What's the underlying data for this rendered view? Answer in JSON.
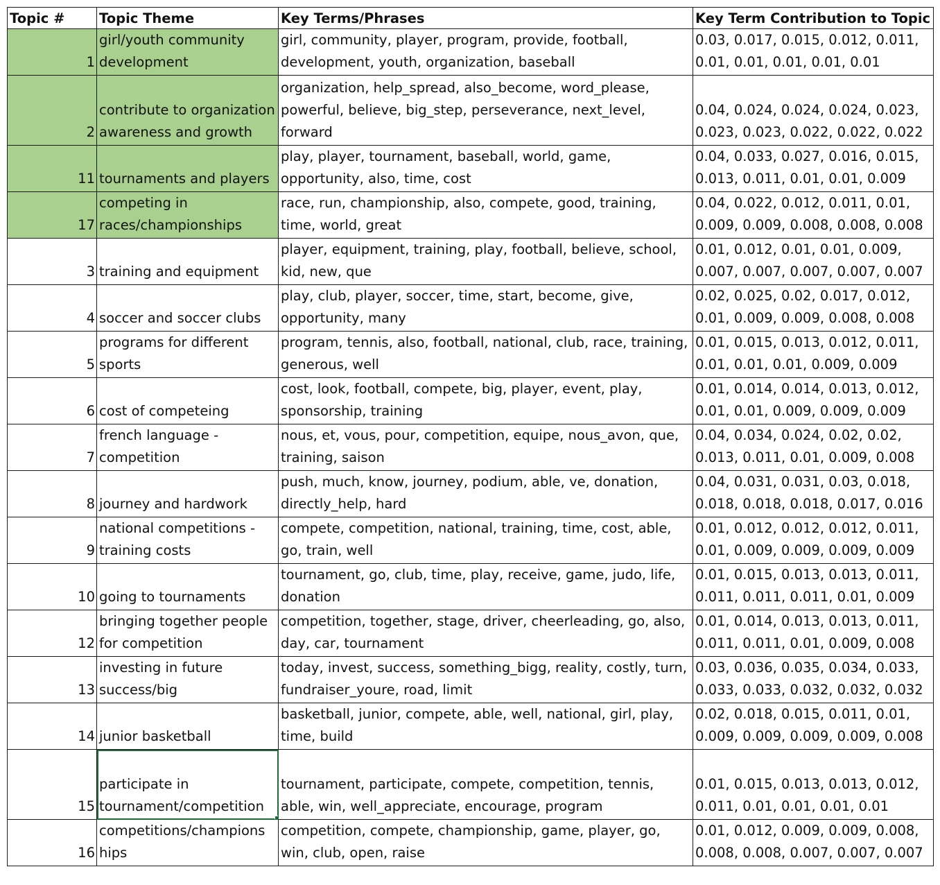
{
  "table": {
    "headers": [
      "Topic #",
      "Topic Theme",
      "Key Terms/Phrases",
      "Key Term Contribution to Topic"
    ],
    "rows": [
      {
        "num": "1",
        "theme": "girl/youth community development",
        "terms": "girl, community, player, program, provide, football, development, youth, organization, baseball",
        "contrib": "0.03, 0.017, 0.015, 0.012, 0.011, 0.01, 0.01, 0.01, 0.01, 0.01"
      },
      {
        "num": "2",
        "theme": "contribute to organization awareness and growth",
        "terms": "organization, help_spread, also_become, word_please, powerful, believe, big_step, perseverance, next_level, forward",
        "contrib": "0.04, 0.024, 0.024, 0.024, 0.023, 0.023, 0.023, 0.022, 0.022, 0.022"
      },
      {
        "num": "11",
        "theme": "tournaments and players",
        "terms": "play, player, tournament, baseball, world, game, opportunity, also, time, cost",
        "contrib": "0.04, 0.033, 0.027, 0.016, 0.015, 0.013, 0.011, 0.01, 0.01, 0.009"
      },
      {
        "num": "17",
        "theme": "competing in races/championships",
        "terms": "race, run, championship, also, compete, good, training, time, world, great",
        "contrib": "0.04, 0.022, 0.012, 0.011, 0.01, 0.009, 0.009, 0.008, 0.008, 0.008"
      },
      {
        "num": "3",
        "theme": "training and equipment",
        "terms": "player, equipment, training, play, football, believe, school, kid, new, que",
        "contrib": "0.01, 0.012, 0.01, 0.01, 0.009, 0.007, 0.007, 0.007, 0.007, 0.007"
      },
      {
        "num": "4",
        "theme": "soccer and soccer clubs",
        "terms": "play, club, player, soccer, time, start, become, give, opportunity, many",
        "contrib": "0.02, 0.025, 0.02, 0.017, 0.012, 0.01, 0.009, 0.009, 0.008, 0.008"
      },
      {
        "num": "5",
        "theme": "programs for different sports",
        "terms": "program, tennis, also, football, national, club, race, training, generous, well",
        "contrib": "0.01, 0.015, 0.013, 0.012, 0.011, 0.01, 0.01, 0.01, 0.009, 0.009"
      },
      {
        "num": "6",
        "theme": "cost of competeing",
        "terms": "cost, look, football, compete, big, player, event, play, sponsorship, training",
        "contrib": "0.01, 0.014, 0.014, 0.013, 0.012, 0.01, 0.01, 0.009, 0.009, 0.009"
      },
      {
        "num": "7",
        "theme": "french language - competition",
        "terms": "nous, et, vous, pour, competition, equipe, nous_avon, que, training, saison",
        "contrib": "0.04, 0.034, 0.024, 0.02, 0.02, 0.013, 0.011, 0.01, 0.009, 0.008"
      },
      {
        "num": "8",
        "theme": "journey and hardwork",
        "terms": "push, much, know, journey, podium, able, ve, donation, directly_help, hard",
        "contrib": "0.04, 0.031, 0.031, 0.03, 0.018, 0.018, 0.018, 0.018, 0.017, 0.016"
      },
      {
        "num": "9",
        "theme": "national competitions - training costs",
        "terms": "compete, competition, national, training, time, cost, able, go, train, well",
        "contrib": "0.01, 0.012, 0.012, 0.012, 0.011, 0.01, 0.009, 0.009, 0.009, 0.009"
      },
      {
        "num": "10",
        "theme": "going to tournaments",
        "terms": "tournament, go, club, time, play, receive, game, judo, life, donation",
        "contrib": "0.01, 0.015, 0.013, 0.013, 0.011, 0.011, 0.011, 0.011, 0.01, 0.009"
      },
      {
        "num": "12",
        "theme": "bringing together people for competition",
        "terms": "competition, together, stage, driver, cheerleading, go, also, day, car, tournament",
        "contrib": "0.01, 0.014, 0.013, 0.013, 0.011, 0.011, 0.011, 0.01, 0.009, 0.008"
      },
      {
        "num": "13",
        "theme": "investing in future success/big",
        "terms": "today, invest, success, something_bigg, reality, costly, turn, fundraiser_youre, road, limit",
        "contrib": "0.03, 0.036, 0.035, 0.034, 0.033, 0.033, 0.033, 0.032, 0.032, 0.032"
      },
      {
        "num": "14",
        "theme": "junior basketball",
        "terms": "basketball, junior, compete, able, well, national, girl, play, time, build",
        "contrib": "0.02, 0.018, 0.015, 0.011, 0.01, 0.009, 0.009, 0.009, 0.009, 0.008"
      },
      {
        "num": "15",
        "theme": "participate in tournament/competition",
        "terms": "tournament, participate, compete, competition, tennis, able, win, well_appreciate, encourage, program",
        "contrib": "0.01, 0.015, 0.013, 0.013, 0.012, 0.011, 0.01, 0.01, 0.01, 0.01"
      },
      {
        "num": "16",
        "theme": "competitions/champions hips",
        "terms": "competition, compete, championship, game, player, go, win, club, open, raise",
        "contrib": "0.01, 0.012, 0.009, 0.009, 0.008, 0.008, 0.008, 0.007, 0.007, 0.007"
      }
    ]
  },
  "colors": {
    "highlight": "#a9d08e",
    "selection_border": "#1e6b3a",
    "grid": "#1a1a1a"
  }
}
